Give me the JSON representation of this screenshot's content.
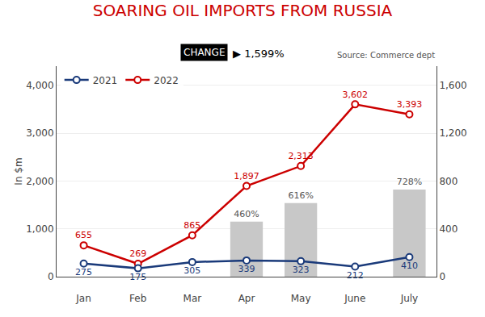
{
  "chart_data": {
    "type": "line",
    "title": "SOARING OIL IMPORTS FROM RUSSIA",
    "ylabel": "In $m",
    "annotations": [
      "CHANGE",
      "▶ 1,599%",
      "Source: Commerce dept"
    ],
    "categories": [
      "Jan",
      "Feb",
      "Mar",
      "Apr",
      "May",
      "June",
      "July"
    ],
    "series": [
      {
        "type": "bar",
        "axis": "y2",
        "color": "#c8c8c8",
        "values": [
          null,
          null,
          null,
          460,
          616,
          null,
          728
        ],
        "value_labels": [
          null,
          null,
          null,
          "460%",
          "616%",
          null,
          "728%"
        ]
      },
      {
        "name": "2022",
        "type": "line",
        "color": "#cc0000",
        "marker": "circle",
        "values": [
          655,
          269,
          865,
          1897,
          2313,
          3602,
          3393
        ],
        "value_labels": [
          "655",
          "269",
          "865",
          "1,897",
          "2,313",
          "3,602",
          "3,393"
        ]
      },
      {
        "name": "2021",
        "type": "line",
        "color": "#1a3a7a",
        "marker": "circle",
        "values": [
          275,
          175,
          305,
          339,
          323,
          212,
          410
        ]
      }
    ],
    "ylim": [
      0,
      4400
    ],
    "yticks": [
      0,
      {
        "value": 1000,
        "label": "1,000"
      },
      {
        "value": 2000,
        "label": "2,000"
      },
      {
        "value": 3000,
        "label": "3,000"
      },
      {
        "value": 4000,
        "label": "4,000"
      }
    ],
    "y2lim": [
      0,
      1760
    ],
    "y2ticks": [
      0,
      400,
      800,
      {
        "value": 1200,
        "label": "1,200"
      },
      {
        "value": 1600,
        "label": "1,600"
      }
    ],
    "grid": true,
    "legend": "upper left",
    "data_labels": true
  }
}
